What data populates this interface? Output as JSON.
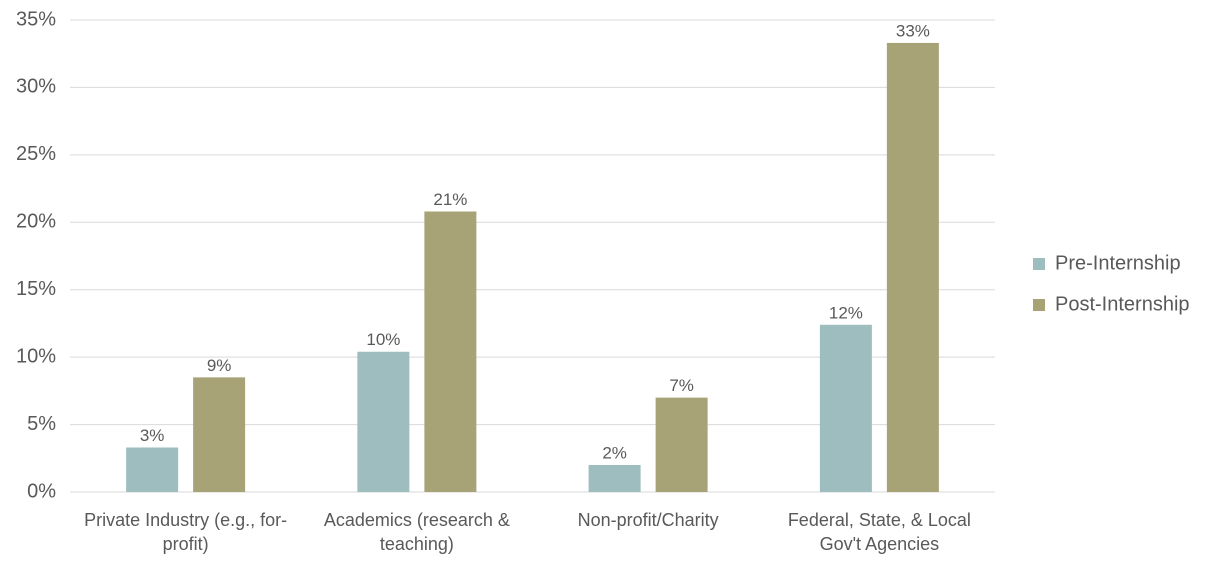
{
  "chart_data": {
    "type": "bar",
    "categories": [
      "Private Industry (e.g., for-profit)",
      "Academics (research & teaching)",
      "Non-profit/Charity",
      "Federal, State, & Local Gov't Agencies"
    ],
    "series": [
      {
        "name": "Pre-Internship",
        "color": "#9dbdbe",
        "values": [
          3.3,
          10.4,
          2.0,
          12.4
        ],
        "value_labels": [
          "3%",
          "10%",
          "2%",
          "12%"
        ]
      },
      {
        "name": "Post-Internship",
        "color": "#a8a377",
        "values": [
          8.5,
          20.8,
          7.0,
          33.3
        ],
        "value_labels": [
          "9%",
          "21%",
          "7%",
          "33%"
        ]
      }
    ],
    "ylim": [
      0,
      35
    ],
    "yticks": [
      {
        "value": 0,
        "label": "0%"
      },
      {
        "value": 5,
        "label": "5%"
      },
      {
        "value": 10,
        "label": "10%"
      },
      {
        "value": 15,
        "label": "15%"
      },
      {
        "value": 20,
        "label": "20%"
      },
      {
        "value": 25,
        "label": "25%"
      },
      {
        "value": 30,
        "label": "30%"
      },
      {
        "value": 35,
        "label": "35%"
      }
    ],
    "grid": true,
    "legend": "right"
  }
}
